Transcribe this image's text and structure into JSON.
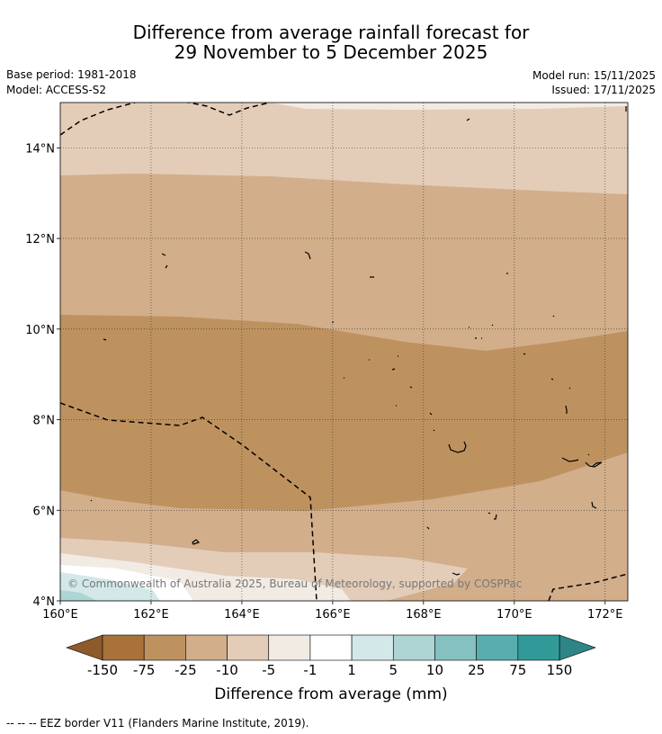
{
  "header": {
    "title_line1": "Difference from average rainfall forecast for",
    "title_line2": "29 November to 5 December 2025"
  },
  "meta": {
    "base_period": "Base period: 1981-2018",
    "model": "Model: ACCESS-S2",
    "model_run": "Model run: 15/11/2025",
    "issued": "Issued: 17/11/2025"
  },
  "map": {
    "lon_range": [
      160,
      172.5
    ],
    "lat_range": [
      4,
      15
    ],
    "lon_ticks": [
      {
        "value": 160,
        "label": "160°E"
      },
      {
        "value": 162,
        "label": "162°E"
      },
      {
        "value": 164,
        "label": "164°E"
      },
      {
        "value": 166,
        "label": "166°E"
      },
      {
        "value": 168,
        "label": "168°E"
      },
      {
        "value": 170,
        "label": "170°E"
      },
      {
        "value": 172,
        "label": "172°E"
      }
    ],
    "lat_ticks": [
      {
        "value": 4,
        "label": "4°N"
      },
      {
        "value": 6,
        "label": "6°N"
      },
      {
        "value": 8,
        "label": "8°N"
      },
      {
        "value": 10,
        "label": "10°N"
      },
      {
        "value": 12,
        "label": "12°N"
      },
      {
        "value": 14,
        "label": "14°N"
      }
    ],
    "copyright": "© Commonwealth of Australia 2025, Bureau of Meteorology, supported by COSPPac"
  },
  "colorbar": {
    "title": "Difference from average (mm)",
    "boundaries": [
      "-150",
      "-75",
      "-25",
      "-10",
      "-5",
      "-1",
      "1",
      "5",
      "10",
      "25",
      "75",
      "150"
    ],
    "colors": [
      "#a8723a",
      "#be925f",
      "#d2ae8b",
      "#e3cdb9",
      "#f1ebe4",
      "#ffffff",
      "#d3e9e9",
      "#aed4d4",
      "#85c1c1",
      "#58aeae",
      "#329999"
    ],
    "under_color": "#8c5a2b",
    "over_color": "#2e8585"
  },
  "footnote": "--  --  -- EEZ border V11 (Flanders Marine Institute, 2019)."
}
